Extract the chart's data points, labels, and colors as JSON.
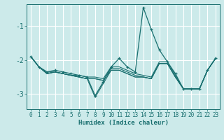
{
  "xlabel": "Humidex (Indice chaleur)",
  "background_color": "#cceaea",
  "grid_color": "#ffffff",
  "line_color": "#1a7070",
  "xlim": [
    -0.5,
    23.5
  ],
  "ylim": [
    -3.45,
    -0.35
  ],
  "yticks": [
    -3,
    -2,
    -1
  ],
  "xticks": [
    0,
    1,
    2,
    3,
    4,
    5,
    6,
    7,
    8,
    9,
    10,
    11,
    12,
    13,
    14,
    15,
    16,
    17,
    18,
    19,
    20,
    21,
    22,
    23
  ],
  "lines": [
    {
      "x": [
        0,
        1,
        2,
        3,
        4,
        5,
        6,
        7,
        8,
        9,
        10,
        11,
        12,
        13,
        14,
        15,
        16,
        17,
        18,
        19,
        20,
        21,
        22,
        23
      ],
      "y": [
        -1.9,
        -2.2,
        -2.35,
        -2.3,
        -2.35,
        -2.4,
        -2.45,
        -2.5,
        -3.05,
        -2.65,
        -2.2,
        -1.95,
        -2.2,
        -2.35,
        -0.45,
        -1.1,
        -1.7,
        -2.05,
        -2.4,
        -2.85,
        -2.85,
        -2.85,
        -2.3,
        -1.95
      ],
      "marker": true
    },
    {
      "x": [
        0,
        1,
        2,
        3,
        4,
        5,
        6,
        7,
        8,
        9,
        10,
        11,
        12,
        13,
        14,
        15,
        16,
        17,
        18,
        19,
        20,
        21,
        22,
        23
      ],
      "y": [
        -1.9,
        -2.2,
        -2.35,
        -2.35,
        -2.4,
        -2.45,
        -2.45,
        -2.5,
        -2.5,
        -2.55,
        -2.2,
        -2.2,
        -2.3,
        -2.4,
        -2.45,
        -2.5,
        -2.05,
        -2.05,
        -2.45,
        -2.85,
        -2.85,
        -2.85,
        -2.3,
        -1.95
      ],
      "marker": false
    },
    {
      "x": [
        0,
        1,
        2,
        3,
        4,
        5,
        6,
        7,
        8,
        9,
        10,
        11,
        12,
        13,
        14,
        15,
        16,
        17,
        18,
        19,
        20,
        21,
        22,
        23
      ],
      "y": [
        -1.9,
        -2.2,
        -2.4,
        -2.35,
        -2.4,
        -2.45,
        -2.5,
        -2.55,
        -2.55,
        -2.6,
        -2.25,
        -2.25,
        -2.35,
        -2.45,
        -2.5,
        -2.55,
        -2.1,
        -2.1,
        -2.5,
        -2.85,
        -2.85,
        -2.85,
        -2.3,
        -1.95
      ],
      "marker": false
    },
    {
      "x": [
        0,
        1,
        2,
        3,
        4,
        5,
        6,
        7,
        8,
        9,
        10,
        11,
        12,
        13,
        14,
        15,
        16,
        17,
        18,
        19,
        20,
        21,
        22,
        23
      ],
      "y": [
        -1.9,
        -2.2,
        -2.4,
        -2.35,
        -2.4,
        -2.45,
        -2.5,
        -2.55,
        -2.55,
        -2.6,
        -2.3,
        -2.3,
        -2.4,
        -2.5,
        -2.5,
        -2.55,
        -2.1,
        -2.1,
        -2.5,
        -2.85,
        -2.85,
        -2.85,
        -2.3,
        -1.95
      ],
      "marker": false
    },
    {
      "x": [
        0,
        1,
        2,
        3,
        4,
        5,
        6,
        7,
        8,
        9,
        10,
        11,
        12,
        13,
        14,
        15,
        16,
        17,
        18,
        19,
        20,
        21,
        22,
        23
      ],
      "y": [
        -1.9,
        -2.2,
        -2.4,
        -2.35,
        -2.4,
        -2.45,
        -2.5,
        -2.55,
        -3.1,
        -2.7,
        -2.3,
        -2.3,
        -2.4,
        -2.5,
        -2.5,
        -2.55,
        -2.1,
        -2.1,
        -2.5,
        -2.85,
        -2.85,
        -2.85,
        -2.3,
        -1.95
      ],
      "marker": false
    }
  ]
}
